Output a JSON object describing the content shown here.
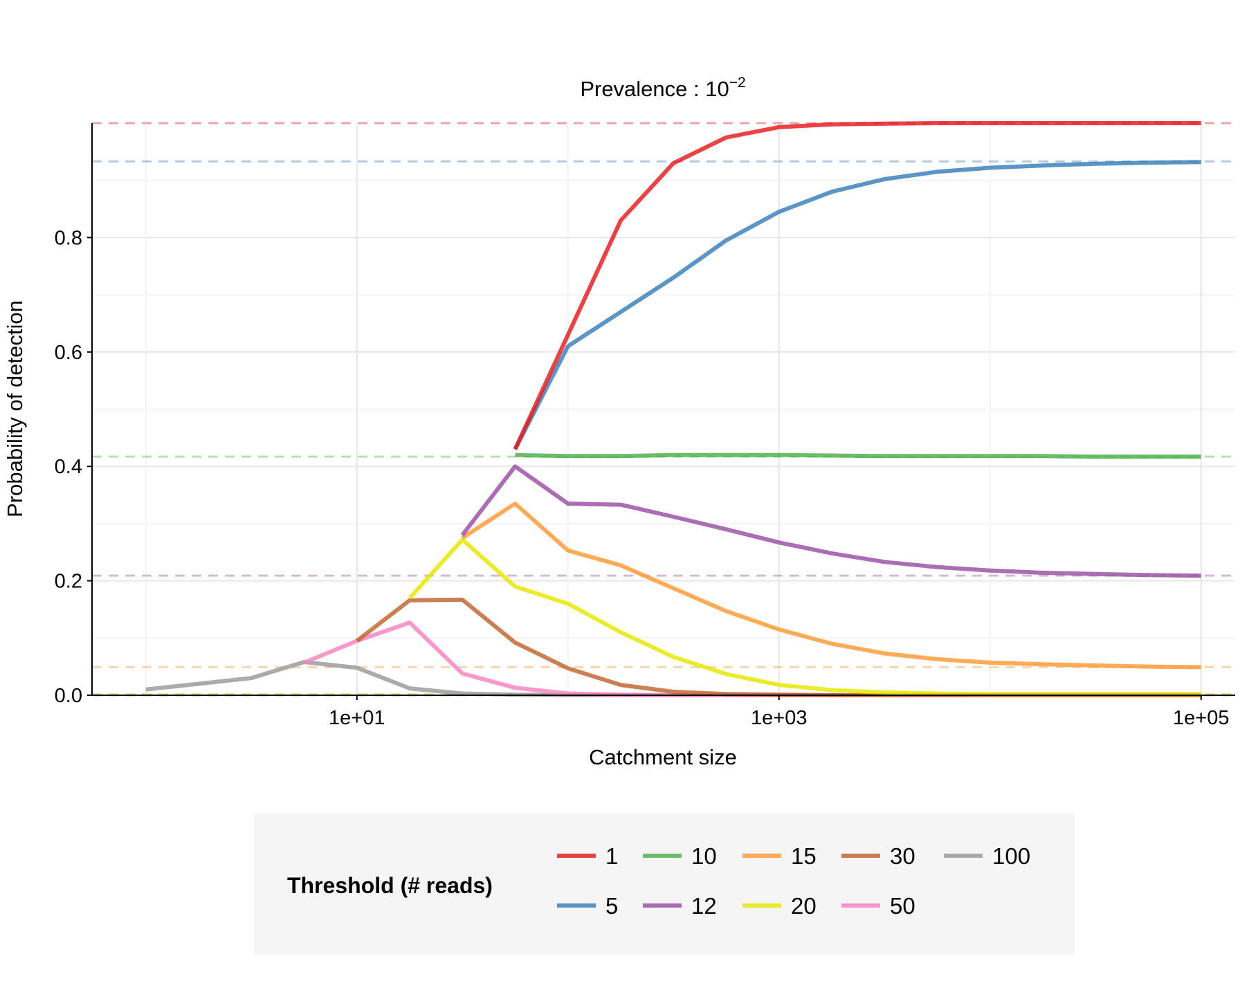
{
  "chart_data": {
    "type": "line",
    "title_base": "Prevalence : 10",
    "title_exponent": "−2",
    "xlabel": "Catchment size",
    "ylabel": "Probability of detection",
    "x_scale": "log10",
    "xlim": [
      0.556,
      145000
    ],
    "ylim": [
      0,
      1
    ],
    "x_ticks": [
      10,
      1000,
      100000
    ],
    "x_tick_labels": [
      "1e+01",
      "1e+03",
      "1e+05"
    ],
    "y_ticks": [
      0,
      0.2,
      0.4,
      0.6,
      0.8
    ],
    "y_tick_labels": [
      "0.0",
      "0.2",
      "0.4",
      "0.6",
      "0.8"
    ],
    "grid": true,
    "legend": {
      "title": "Threshold (# reads)",
      "placement": "bottom"
    },
    "x": [
      1,
      1.78,
      3.16,
      5.62,
      10,
      17.8,
      31.6,
      56.2,
      100,
      178,
      316,
      562,
      1000,
      1780,
      3160,
      5620,
      10000,
      17800,
      31600,
      56200,
      100000
    ],
    "series": [
      {
        "name": "1",
        "color": "#E41A1C",
        "asymptote": 1.0,
        "values": [
          null,
          null,
          null,
          null,
          null,
          null,
          null,
          0.43,
          0.63,
          0.83,
          0.93,
          0.975,
          0.993,
          0.998,
          0.999,
          1.0,
          1.0,
          1.0,
          1.0,
          1.0,
          1.0
        ]
      },
      {
        "name": "5",
        "color": "#377EB8",
        "asymptote": 0.933,
        "values": [
          null,
          null,
          null,
          null,
          null,
          null,
          null,
          0.43,
          0.61,
          0.67,
          0.73,
          0.795,
          0.845,
          0.88,
          0.902,
          0.915,
          0.922,
          0.926,
          0.929,
          0.931,
          0.932
        ]
      },
      {
        "name": "10",
        "color": "#4DAF4A",
        "asymptote": 0.417,
        "values": [
          null,
          null,
          null,
          null,
          null,
          null,
          null,
          0.42,
          0.418,
          0.418,
          0.42,
          0.42,
          0.42,
          0.419,
          0.418,
          0.418,
          0.418,
          0.418,
          0.417,
          0.417,
          0.417
        ]
      },
      {
        "name": "12",
        "color": "#984EA3",
        "asymptote": 0.209,
        "values": [
          null,
          null,
          null,
          null,
          null,
          null,
          0.28,
          0.4,
          0.335,
          0.333,
          0.312,
          0.29,
          0.267,
          0.248,
          0.233,
          0.224,
          0.218,
          0.214,
          0.212,
          0.21,
          0.209
        ]
      },
      {
        "name": "15",
        "color": "#FF9933",
        "asymptote": 0.049,
        "values": [
          null,
          null,
          null,
          null,
          null,
          null,
          0.275,
          0.335,
          0.253,
          0.227,
          0.187,
          0.147,
          0.115,
          0.09,
          0.073,
          0.063,
          0.057,
          0.054,
          0.052,
          0.05,
          0.049
        ]
      },
      {
        "name": "20",
        "color": "#E6E600",
        "asymptote": 0.002,
        "values": [
          null,
          null,
          null,
          null,
          null,
          0.17,
          0.272,
          0.19,
          0.16,
          0.11,
          0.067,
          0.037,
          0.018,
          0.009,
          0.005,
          0.003,
          0.002,
          0.002,
          0.002,
          0.002,
          0.002
        ]
      },
      {
        "name": "30",
        "color": "#C0632D",
        "asymptote": 0.0,
        "values": [
          null,
          null,
          null,
          null,
          0.095,
          0.166,
          0.167,
          0.092,
          0.047,
          0.018,
          0.006,
          0.002,
          0.001,
          0.0,
          0.0,
          0.0,
          0.0,
          0.0,
          0.0,
          0.0,
          0.0
        ]
      },
      {
        "name": "50",
        "color": "#F781BF",
        "asymptote": 0.0,
        "values": [
          null,
          null,
          null,
          0.057,
          0.095,
          0.127,
          0.038,
          0.013,
          0.003,
          0.001,
          0.0,
          0.0,
          0.0,
          0.0,
          0.0,
          0.0,
          0.0,
          0.0,
          0.0,
          0.0,
          0.0
        ]
      },
      {
        "name": "100",
        "color": "#999999",
        "asymptote": 0.0,
        "values": [
          0.01,
          0.02,
          0.03,
          0.058,
          0.048,
          0.012,
          0.003,
          0.001,
          0.0,
          0.0,
          0.0,
          0.0,
          0.0,
          0.0,
          0.0,
          0.0,
          0.0,
          0.0,
          0.0,
          0.0,
          0.0
        ]
      }
    ]
  }
}
